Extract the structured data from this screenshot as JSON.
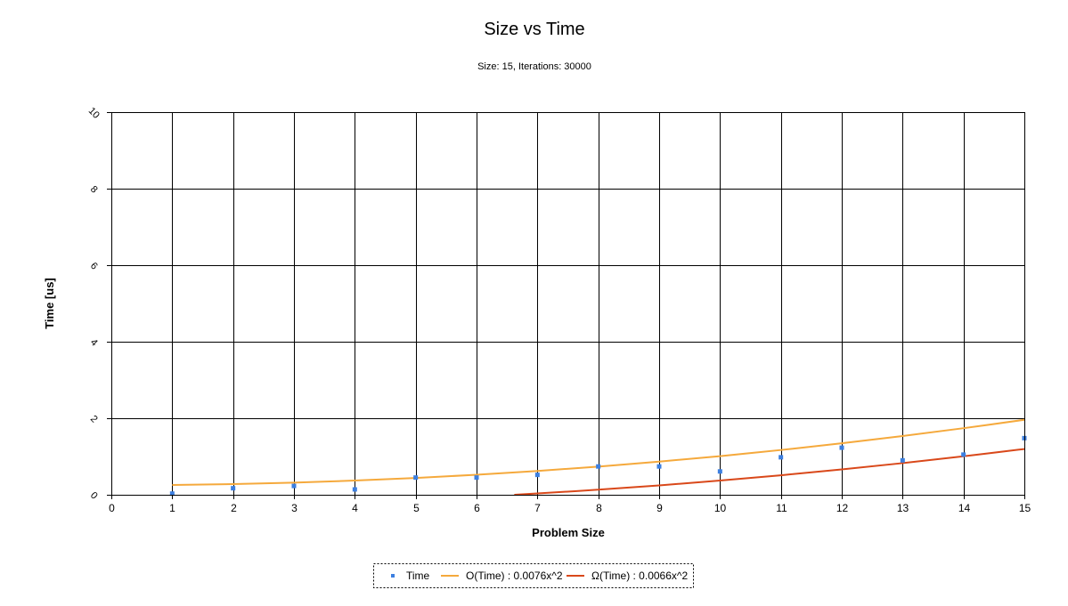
{
  "chart_data": {
    "type": "scatter",
    "title": "Size vs Time",
    "subtitle": "Size: 15, Iterations: 30000",
    "xlabel": "Problem Size",
    "ylabel": "Time [us]",
    "xlim": [
      0,
      15
    ],
    "ylim": [
      0,
      10
    ],
    "x_ticks": [
      "0",
      "1",
      "2",
      "3",
      "4",
      "5",
      "6",
      "7",
      "8",
      "9",
      "10",
      "11",
      "12",
      "13",
      "14",
      "15"
    ],
    "y_ticks": [
      "0",
      "2",
      "4",
      "6",
      "8",
      "10"
    ],
    "grid": true,
    "legend_position": "bottom-center",
    "series": [
      {
        "name": "Time",
        "kind": "scatter",
        "color": "#3c7fe0",
        "x": [
          1,
          2,
          3,
          4,
          5,
          6,
          7,
          8,
          9,
          10,
          11,
          12,
          13,
          14,
          15
        ],
        "y": [
          0.03,
          0.17,
          0.23,
          0.14,
          0.45,
          0.45,
          0.52,
          0.74,
          0.74,
          0.61,
          0.98,
          1.23,
          0.9,
          1.05,
          1.48
        ]
      },
      {
        "name": "O(Time) : 0.0076x^2",
        "kind": "line",
        "color": "#f5a93c",
        "x": [
          1,
          2,
          3,
          4,
          5,
          6,
          7,
          8,
          9,
          10,
          11,
          12,
          13,
          14,
          15
        ],
        "y": [
          0.257,
          0.28,
          0.318,
          0.371,
          0.439,
          0.523,
          0.622,
          0.736,
          0.866,
          1.01,
          1.17,
          1.345,
          1.535,
          1.74,
          1.96
        ]
      },
      {
        "name": "Ω(Time) : 0.0066x^2",
        "kind": "line",
        "color": "#d9481a",
        "x": [
          6.62,
          7,
          8,
          9,
          10,
          11,
          12,
          13,
          14,
          15
        ],
        "y": [
          0,
          0.034,
          0.133,
          0.245,
          0.371,
          0.51,
          0.662,
          0.827,
          1.005,
          1.196
        ]
      }
    ]
  }
}
